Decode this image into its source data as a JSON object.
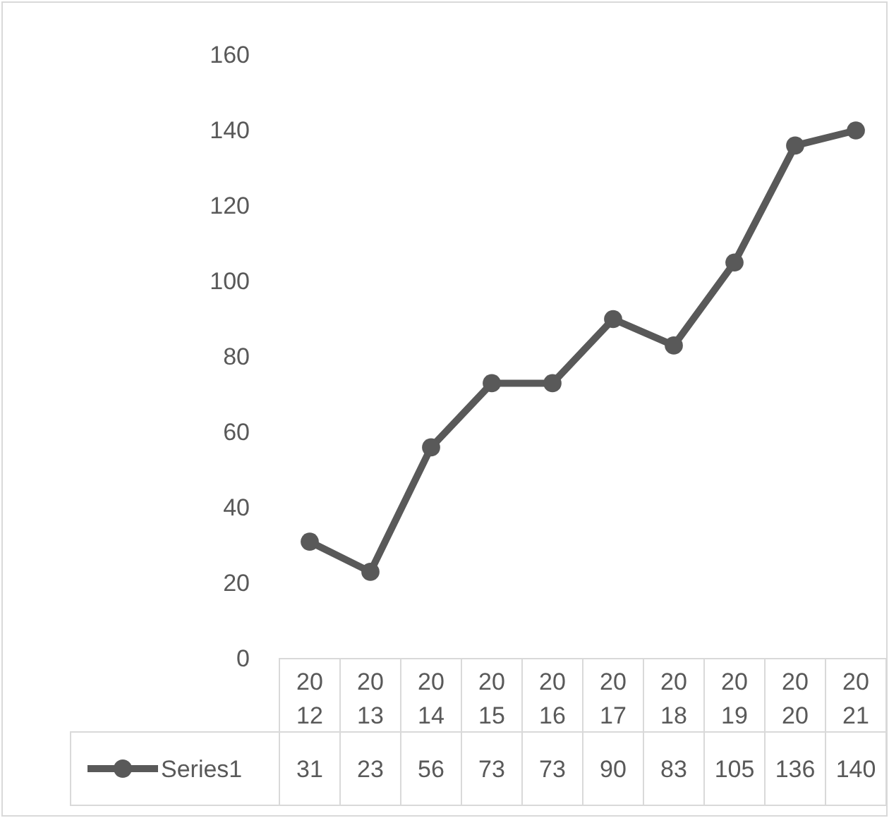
{
  "chart_data": {
    "type": "line",
    "categories": [
      "2012",
      "2013",
      "2014",
      "2015",
      "2016",
      "2017",
      "2018",
      "2019",
      "2020",
      "2021"
    ],
    "series": [
      {
        "name": "Series1",
        "color": "#595959",
        "values": [
          31,
          23,
          56,
          73,
          73,
          90,
          83,
          105,
          136,
          140
        ]
      }
    ],
    "ylim": [
      0,
      160
    ],
    "yticks": [
      0,
      20,
      40,
      60,
      80,
      100,
      120,
      140,
      160
    ],
    "grid": false,
    "legend": "bottom",
    "data_labels": true,
    "marker": "circle",
    "line_style": "solid"
  }
}
